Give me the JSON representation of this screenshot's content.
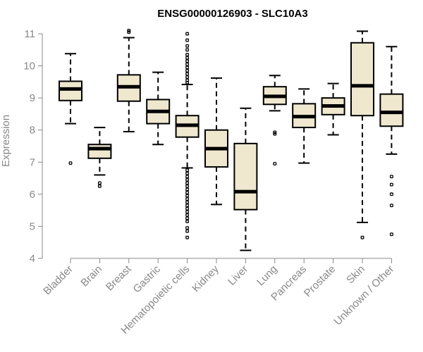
{
  "chart_data": {
    "type": "boxplot",
    "title": "ENSG00000126903 - SLC10A3",
    "xlabel": "",
    "ylabel": "Expression",
    "ylim": [
      4,
      11
    ],
    "yticks": [
      4,
      5,
      6,
      7,
      8,
      9,
      10,
      11
    ],
    "grid": false,
    "categories": [
      "Bladder",
      "Brain",
      "Breast",
      "Gastric",
      "Hematopoietic cells",
      "Kidney",
      "Liver",
      "Lung",
      "Pancreas",
      "Prostate",
      "Skin",
      "Unknown / Other"
    ],
    "boxes": [
      {
        "name": "Bladder",
        "whisker_low": 8.2,
        "q1": 8.92,
        "median": 9.28,
        "q3": 9.52,
        "whisker_high": 10.38,
        "outliers": [
          6.97
        ]
      },
      {
        "name": "Brain",
        "whisker_low": 6.6,
        "q1": 7.12,
        "median": 7.42,
        "q3": 7.55,
        "whisker_high": 8.08,
        "outliers": [
          6.35,
          6.25
        ]
      },
      {
        "name": "Breast",
        "whisker_low": 7.95,
        "q1": 8.9,
        "median": 9.35,
        "q3": 9.72,
        "whisker_high": 10.88,
        "outliers": [
          11.1,
          11.05
        ]
      },
      {
        "name": "Gastric",
        "whisker_low": 7.55,
        "q1": 8.2,
        "median": 8.58,
        "q3": 8.95,
        "whisker_high": 9.8,
        "outliers": []
      },
      {
        "name": "Hematopoietic cells",
        "whisker_low": 6.82,
        "q1": 7.78,
        "median": 8.15,
        "q3": 8.45,
        "whisker_high": 9.42,
        "outliers": [
          11.0,
          10.8,
          10.62,
          10.5,
          10.35,
          10.25,
          10.15,
          10.05,
          9.95,
          9.85,
          9.75,
          9.65,
          9.55,
          9.48,
          6.75,
          6.65,
          6.55,
          6.45,
          6.35,
          6.25,
          6.15,
          6.05,
          5.95,
          5.85,
          5.75,
          5.65,
          5.55,
          5.45,
          5.35,
          5.25,
          5.15,
          4.95,
          4.85,
          4.65
        ]
      },
      {
        "name": "Kidney",
        "whisker_low": 5.68,
        "q1": 6.85,
        "median": 7.42,
        "q3": 8.0,
        "whisker_high": 9.62,
        "outliers": []
      },
      {
        "name": "Liver",
        "whisker_low": 4.25,
        "q1": 5.52,
        "median": 6.08,
        "q3": 7.58,
        "whisker_high": 8.68,
        "outliers": []
      },
      {
        "name": "Lung",
        "whisker_low": 8.6,
        "q1": 8.8,
        "median": 9.05,
        "q3": 9.35,
        "whisker_high": 9.7,
        "outliers": [
          7.93,
          7.88,
          6.95
        ]
      },
      {
        "name": "Pancreas",
        "whisker_low": 6.97,
        "q1": 8.08,
        "median": 8.42,
        "q3": 8.82,
        "whisker_high": 9.28,
        "outliers": []
      },
      {
        "name": "Prostate",
        "whisker_low": 7.85,
        "q1": 8.48,
        "median": 8.75,
        "q3": 9.0,
        "whisker_high": 9.45,
        "outliers": []
      },
      {
        "name": "Skin",
        "whisker_low": 5.12,
        "q1": 8.45,
        "median": 9.38,
        "q3": 10.72,
        "whisker_high": 11.08,
        "outliers": [
          4.65
        ]
      },
      {
        "name": "Unknown / Other",
        "whisker_low": 7.25,
        "q1": 8.12,
        "median": 8.55,
        "q3": 9.12,
        "whisker_high": 10.6,
        "outliers": [
          6.55,
          6.3,
          6.0,
          5.65,
          4.75
        ]
      }
    ],
    "colors": {
      "box_fill": "#efe8cf",
      "box_stroke": "#000000",
      "axis": "#888888",
      "label": "#888888"
    }
  }
}
